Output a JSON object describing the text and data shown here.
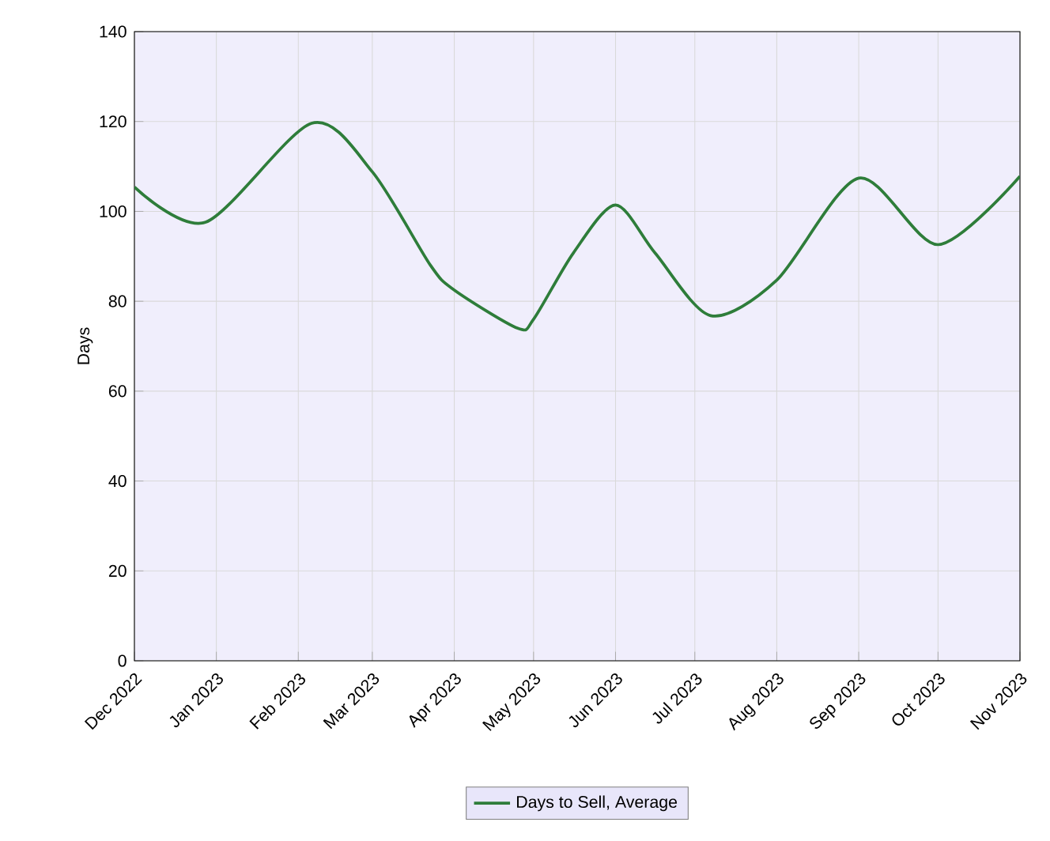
{
  "chart_data": {
    "type": "line",
    "ylabel": "Days",
    "x": [
      "2022-12-01",
      "2022-12-28",
      "2023-02-06",
      "2023-03-01",
      "2023-03-23",
      "2023-04-01",
      "2023-04-25",
      "2023-05-01",
      "2023-05-16",
      "2023-06-01",
      "2023-06-16",
      "2023-07-07",
      "2023-08-01",
      "2023-09-01",
      "2023-10-01",
      "2023-11-01"
    ],
    "series": [
      {
        "name": "Days to Sell, Average",
        "color": "#2e7d3a",
        "values": [
          105.4,
          97.6,
          119.6,
          108.8,
          88,
          82.5,
          74,
          76,
          90.7,
          101.4,
          90.7,
          76.8,
          84.7,
          107.4,
          92.6,
          107.8
        ]
      }
    ],
    "xlim": [
      "2022-12-01",
      "2023-11-01"
    ],
    "xticks": [
      {
        "value": "2022-12-01",
        "label": "Dec 2022"
      },
      {
        "value": "2023-01-01",
        "label": "Jan 2023"
      },
      {
        "value": "2023-02-01",
        "label": "Feb 2023"
      },
      {
        "value": "2023-03-01",
        "label": "Mar 2023"
      },
      {
        "value": "2023-04-01",
        "label": "Apr 2023"
      },
      {
        "value": "2023-05-01",
        "label": "May 2023"
      },
      {
        "value": "2023-06-01",
        "label": "Jun 2023"
      },
      {
        "value": "2023-07-01",
        "label": "Jul 2023"
      },
      {
        "value": "2023-08-01",
        "label": "Aug 2023"
      },
      {
        "value": "2023-09-01",
        "label": "Sep 2023"
      },
      {
        "value": "2023-10-01",
        "label": "Oct 2023"
      },
      {
        "value": "2023-11-01",
        "label": "Nov 2023"
      }
    ],
    "ylim": [
      0,
      140
    ],
    "yticks": [
      0,
      20,
      40,
      60,
      80,
      100,
      120,
      140
    ],
    "grid": true,
    "legend": "bottom",
    "marker": "none",
    "line_style": "solid"
  }
}
